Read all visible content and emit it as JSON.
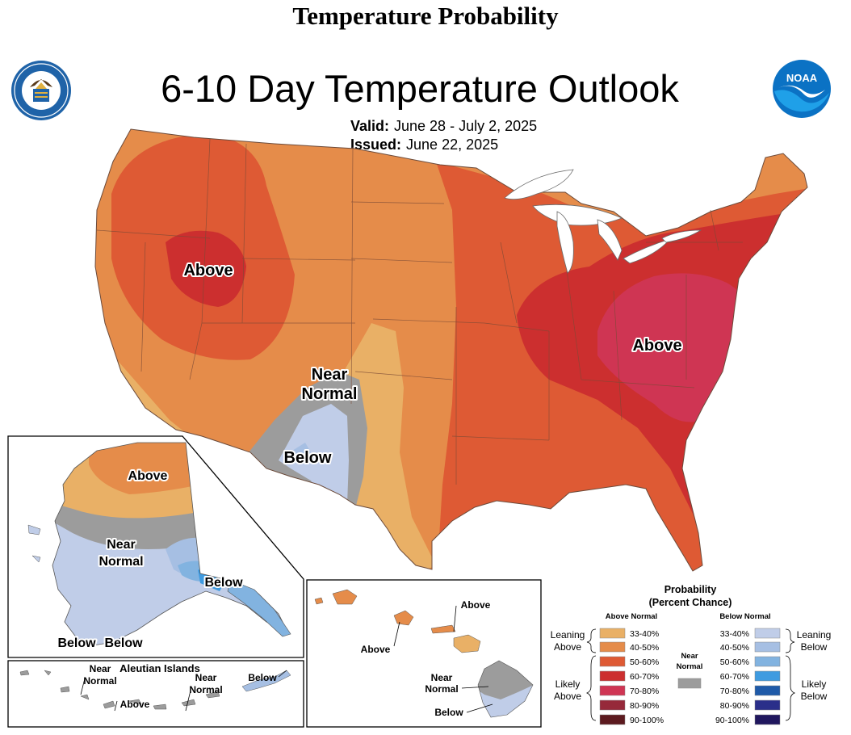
{
  "page_title": "Temperature Probability",
  "map_title": "6-10 Day Temperature Outlook",
  "valid": {
    "label": "Valid:",
    "value": "June 28 - July 2, 2025"
  },
  "issued": {
    "label": "Issued:",
    "value": "June 22, 2025"
  },
  "logos": {
    "left": "department-of-commerce-seal",
    "right": "noaa-logo",
    "noaa_text": "NOAA"
  },
  "colors": {
    "above_33_40": "#e9b066",
    "above_40_50": "#e58c4a",
    "above_50_60": "#de5a34",
    "above_60_70": "#cc2f2f",
    "above_70_80": "#cf3553",
    "above_80_90": "#96293a",
    "above_90_100": "#5c1a1f",
    "near_normal": "#9c9c9c",
    "below_33_40": "#c0cde8",
    "below_40_50": "#a6bfe3",
    "below_50_60": "#82b3e0",
    "below_60_70": "#3f9be0",
    "below_70_80": "#1f5aa8",
    "below_80_90": "#2a2f8a",
    "below_90_100": "#20175e"
  },
  "conus_labels": {
    "above_west": "Above",
    "near_normal_1": "Near",
    "near_normal_2": "Normal",
    "below": "Below",
    "above_east": "Above"
  },
  "alaska_labels": {
    "above": "Above",
    "near_1": "Near",
    "near_2": "Normal",
    "below_se": "Below",
    "below_sw_1": "Below",
    "below_sw_2": "Below"
  },
  "aleutian_labels": {
    "title": "Aleutian Islands",
    "near_a_1": "Near",
    "near_a_2": "Normal",
    "above": "Above",
    "near_b_1": "Near",
    "near_b_2": "Normal",
    "below": "Below"
  },
  "hawaii_labels": {
    "above_1": "Above",
    "above_2": "Above",
    "near_1": "Near",
    "near_2": "Normal",
    "below": "Below"
  },
  "legend": {
    "title_1": "Probability",
    "title_2": "(Percent Chance)",
    "above_header": "Above Normal",
    "below_header": "Below Normal",
    "near_header_1": "Near",
    "near_header_2": "Normal",
    "leaning_above_1": "Leaning",
    "leaning_above_2": "Above",
    "likely_above_1": "Likely",
    "likely_above_2": "Above",
    "leaning_below_1": "Leaning",
    "leaning_below_2": "Below",
    "likely_below_1": "Likely",
    "likely_below_2": "Below",
    "above_bins": [
      "33-40%",
      "40-50%",
      "50-60%",
      "60-70%",
      "70-80%",
      "80-90%",
      "90-100%"
    ],
    "below_bins": [
      "33-40%",
      "40-50%",
      "50-60%",
      "60-70%",
      "70-80%",
      "80-90%",
      "90-100%"
    ]
  }
}
